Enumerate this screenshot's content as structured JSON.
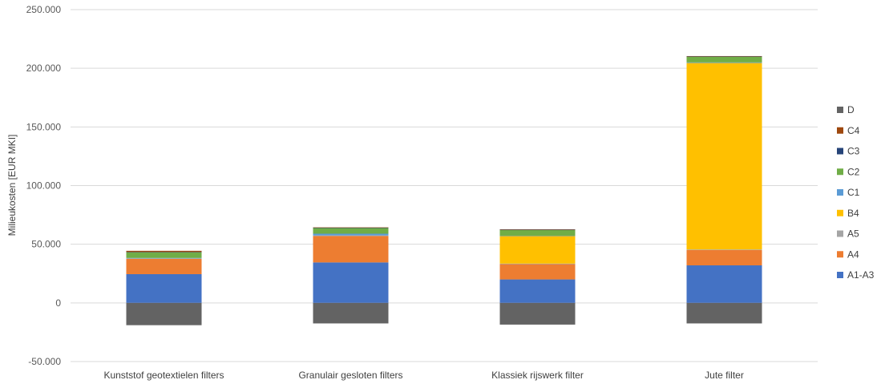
{
  "chart_data": {
    "type": "bar",
    "stacked": true,
    "categories": [
      "Kunststof geotextielen filters",
      "Granulair gesloten filters",
      "Klassiek rijswerk filter",
      "Jute filter"
    ],
    "ylabel": "Milieukosten [EUR MKI]",
    "xlabel": "",
    "ylim": [
      -50000,
      250000
    ],
    "yticks": [
      -50000,
      0,
      50000,
      100000,
      150000,
      200000,
      250000
    ],
    "ytick_labels": [
      "-50.000",
      "0",
      "50.000",
      "100.000",
      "150.000",
      "200.000",
      "250.000"
    ],
    "grid": true,
    "legend": "right",
    "series": [
      {
        "name": "A1-A3",
        "color": "#4472C4",
        "values": [
          24500,
          34500,
          20000,
          32000
        ]
      },
      {
        "name": "A4",
        "color": "#ED7D31",
        "values": [
          13000,
          22500,
          13000,
          13000
        ]
      },
      {
        "name": "A5",
        "color": "#A5A5A5",
        "values": [
          500,
          500,
          500,
          500
        ]
      },
      {
        "name": "B4",
        "color": "#FFC000",
        "values": [
          0,
          0,
          23500,
          159000
        ]
      },
      {
        "name": "C1",
        "color": "#5B9BD5",
        "values": [
          300,
          1500,
          300,
          500
        ]
      },
      {
        "name": "C2",
        "color": "#70AD47",
        "values": [
          5000,
          5000,
          5000,
          5000
        ]
      },
      {
        "name": "C3",
        "color": "#264478",
        "values": [
          100,
          100,
          100,
          100
        ]
      },
      {
        "name": "C4",
        "color": "#9E480E",
        "values": [
          1000,
          300,
          300,
          300
        ]
      },
      {
        "name": "D",
        "color": "#636363",
        "values": [
          -19000,
          -17500,
          -18500,
          -17500
        ]
      }
    ]
  }
}
